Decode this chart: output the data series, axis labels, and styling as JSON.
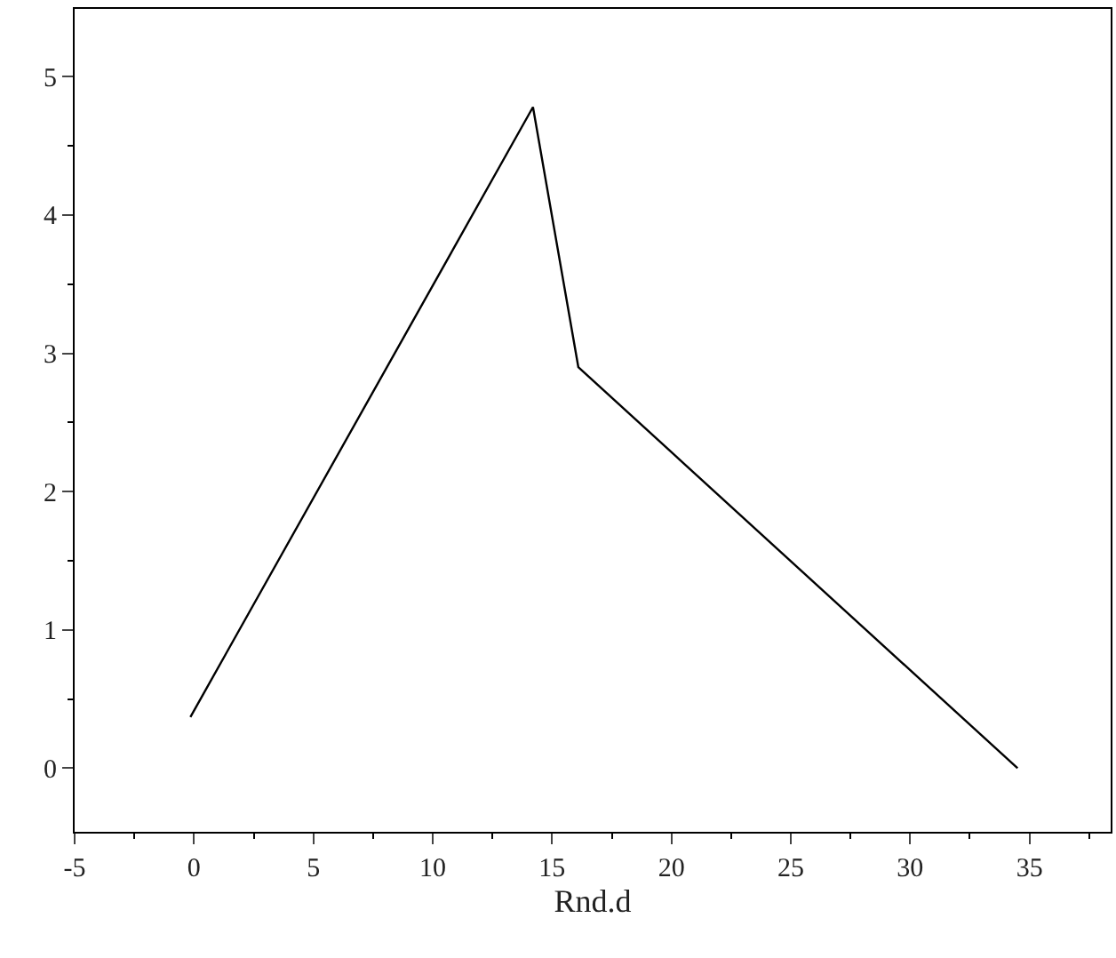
{
  "chart_data": {
    "type": "line",
    "xlabel": "Rnd.d",
    "x": [
      -0.15,
      14.2,
      16.1,
      34.5
    ],
    "series": [
      {
        "color": "#000000",
        "values": [
          0.37,
          4.78,
          2.9,
          0.0
        ]
      }
    ],
    "xlim": [
      -5,
      38.4
    ],
    "ylim": [
      -0.46,
      5.49
    ],
    "xticks": [
      -5,
      0,
      5,
      10,
      15,
      20,
      25,
      30,
      35
    ],
    "yticks": [
      0,
      1,
      2,
      3,
      4,
      5
    ],
    "grid": false,
    "marker": "none",
    "line_style": "solid"
  }
}
